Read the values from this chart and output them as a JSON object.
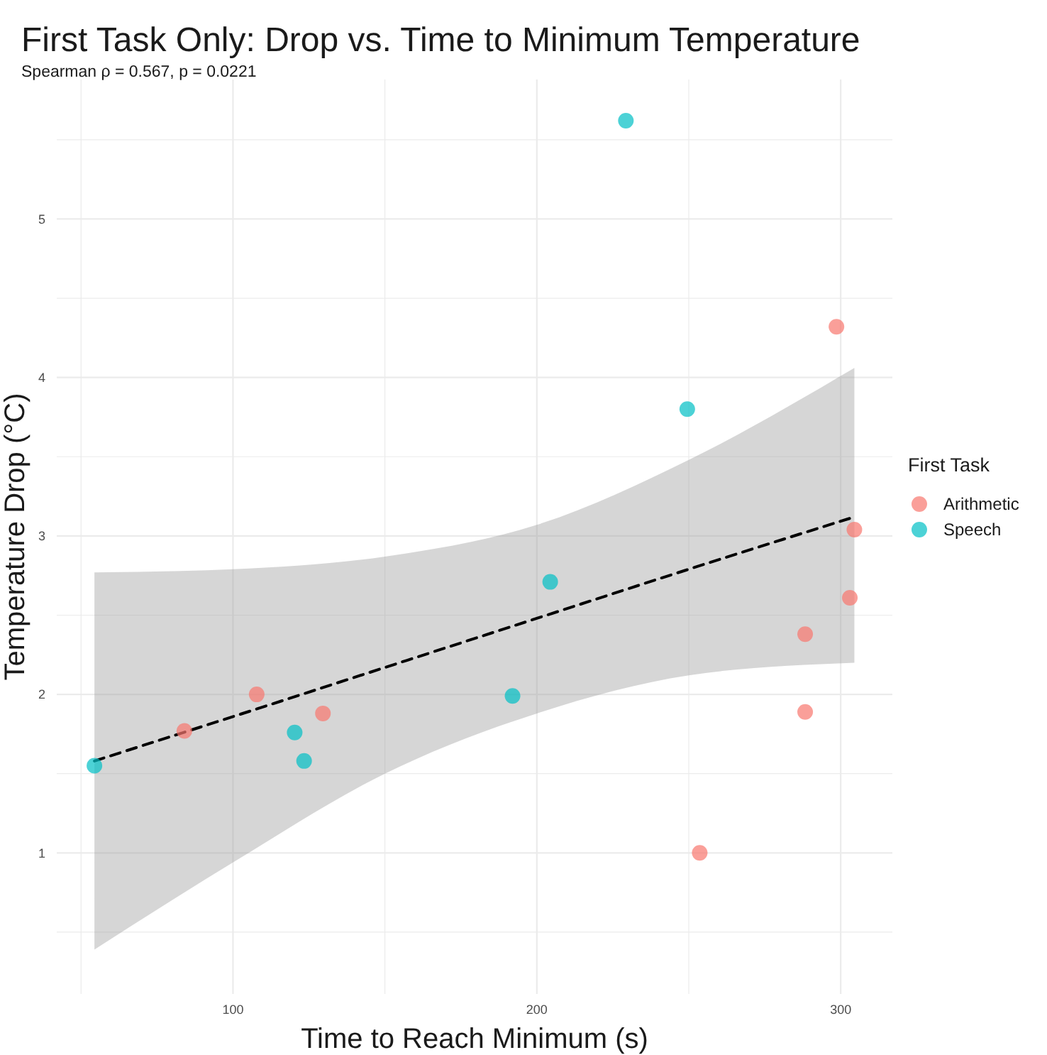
{
  "chart_data": {
    "type": "scatter",
    "title": "First Task Only: Drop vs. Time to Minimum Temperature",
    "subtitle": "Spearman ρ = 0.567, p = 0.0221",
    "xlabel": "Time to Reach Minimum (s)",
    "ylabel": "Temperature Drop (°C)",
    "legend_title": "First Task",
    "xlim": [
      42,
      317
    ],
    "ylim": [
      0.11,
      5.88
    ],
    "xticks": [
      {
        "value": 50,
        "label": null
      },
      100,
      {
        "value": 150,
        "label": null
      },
      200,
      {
        "value": 250,
        "label": null
      },
      300
    ],
    "yticks": [
      {
        "value": 0.5,
        "label": null
      },
      1,
      {
        "value": 1.5,
        "label": null
      },
      2,
      {
        "value": 2.5,
        "label": null
      },
      3,
      {
        "value": 3.5,
        "label": null
      },
      4,
      {
        "value": 4.5,
        "label": null
      },
      5,
      {
        "value": 5.5,
        "label": null
      }
    ],
    "grid": true,
    "legend": "right",
    "marker": "circle",
    "series": [
      {
        "type": "line",
        "color": "#000000",
        "line_style": "dashed",
        "marker": "none",
        "x": [
          54.4,
          100,
          150,
          200,
          250,
          304.5
        ],
        "values": [
          1.58,
          1.86,
          2.17,
          2.48,
          2.79,
          3.12
        ],
        "lower": [
          0.39,
          0.94,
          1.5,
          1.88,
          2.12,
          2.2
        ],
        "upper": [
          2.77,
          2.79,
          2.87,
          3.07,
          3.48,
          4.06
        ]
      },
      {
        "name": "Arithmetic",
        "color": "#f8766d",
        "x": [
          84.0,
          107.8,
          129.6,
          253.6,
          288.3,
          288.3,
          303,
          304.5,
          298.6
        ],
        "values": [
          1.77,
          2.0,
          1.88,
          1.0,
          1.89,
          2.38,
          2.61,
          3.04,
          4.32
        ]
      },
      {
        "name": "Speech",
        "color": "#00bfc4",
        "x": [
          54.4,
          120.3,
          123.4,
          192.0,
          204.4,
          249.5,
          229.3
        ],
        "values": [
          1.55,
          1.76,
          1.58,
          1.99,
          2.71,
          3.8,
          5.62
        ]
      }
    ]
  }
}
